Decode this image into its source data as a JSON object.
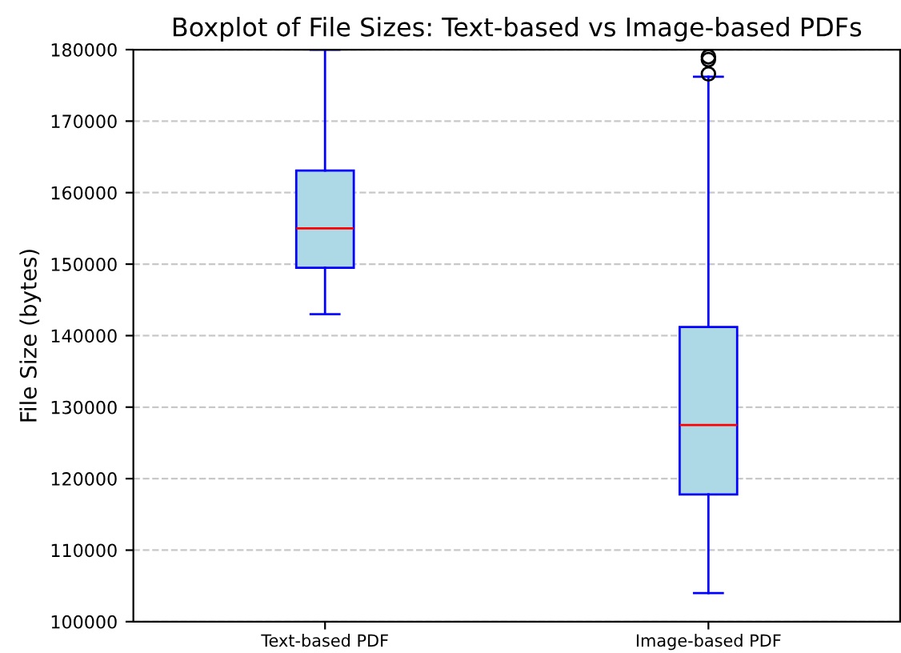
{
  "chart_data": {
    "type": "box",
    "title": "Boxplot of File Sizes: Text-based vs Image-based PDFs",
    "ylabel": "File Size (bytes)",
    "categories": [
      "Text-based PDF",
      "Image-based PDF"
    ],
    "boxes": [
      {
        "low": 143000,
        "q1": 149500,
        "median": 155000,
        "q3": 163100,
        "high": 180000
      },
      {
        "low": 104000,
        "q1": 117800,
        "median": 127500,
        "q3": 141200,
        "high": 176200,
        "outliers": [
          176600,
          178600,
          179000
        ]
      }
    ],
    "color": "#add8e6",
    "ylim": [
      100000,
      180000
    ],
    "yticks": [
      100000,
      110000,
      120000,
      130000,
      140000,
      150000,
      160000,
      170000,
      180000
    ],
    "grid": "y",
    "line_style": "dashed"
  }
}
